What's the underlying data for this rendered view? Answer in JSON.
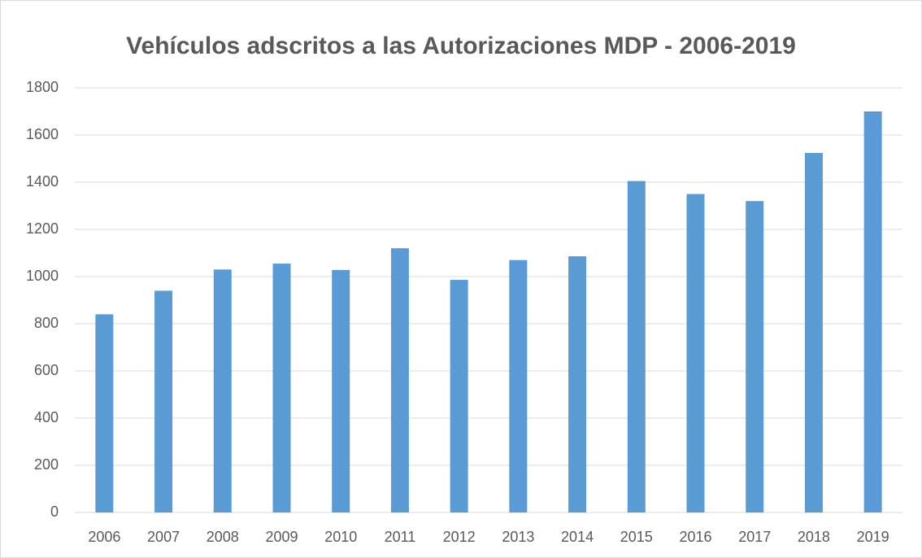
{
  "chart_data": {
    "type": "bar",
    "title": "Vehículos adscritos a las Autorizaciones MDP - 2006-2019",
    "categories": [
      "2006",
      "2007",
      "2008",
      "2009",
      "2010",
      "2011",
      "2012",
      "2013",
      "2014",
      "2015",
      "2016",
      "2017",
      "2018",
      "2019"
    ],
    "values": [
      840,
      940,
      1030,
      1055,
      1028,
      1120,
      986,
      1070,
      1086,
      1405,
      1350,
      1320,
      1524,
      1700
    ],
    "color": "#5b9bd5",
    "ylim": [
      0,
      1800
    ],
    "yticks": [
      0,
      200,
      400,
      600,
      800,
      1000,
      1200,
      1400,
      1600,
      1800
    ],
    "grid": true
  }
}
